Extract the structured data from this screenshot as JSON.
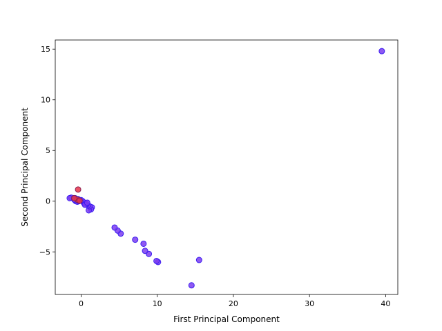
{
  "chart_data": {
    "type": "scatter",
    "title": "",
    "xlabel": "First Principal Component",
    "ylabel": "Second Principal Component",
    "xlim": [
      -3.4,
      41.6
    ],
    "ylim": [
      -9.2,
      15.9
    ],
    "xticks": [
      0,
      10,
      20,
      30,
      40
    ],
    "yticks": [
      -5,
      0,
      5,
      10,
      15
    ],
    "xtick_labels": [
      "0",
      "10",
      "20",
      "30",
      "40"
    ],
    "ytick_labels": [
      "−5",
      "0",
      "5",
      "10",
      "15"
    ],
    "grid": false,
    "legend": "none",
    "series": [
      {
        "color": "#7b3cf0",
        "edge_color": "#3a1cf0",
        "points": [
          [
            39.5,
            14.8
          ],
          [
            15.5,
            -5.8
          ],
          [
            14.5,
            -8.3
          ],
          [
            10.1,
            -6.0
          ],
          [
            9.9,
            -5.9
          ],
          [
            8.9,
            -5.2
          ],
          [
            8.4,
            -4.9
          ],
          [
            8.2,
            -4.2
          ],
          [
            7.1,
            -3.8
          ],
          [
            5.2,
            -3.2
          ],
          [
            4.8,
            -2.9
          ],
          [
            4.4,
            -2.6
          ],
          [
            1.4,
            -0.6
          ],
          [
            1.3,
            -0.8
          ],
          [
            1.0,
            -0.9
          ],
          [
            1.1,
            -0.5
          ],
          [
            0.9,
            -0.4
          ],
          [
            0.7,
            -0.3
          ],
          [
            0.6,
            -0.2
          ],
          [
            0.4,
            -0.2
          ],
          [
            0.3,
            -0.1
          ],
          [
            0.2,
            0.0
          ],
          [
            0.0,
            0.1
          ],
          [
            -0.2,
            0.1
          ],
          [
            -0.4,
            0.2
          ],
          [
            -0.6,
            0.2
          ],
          [
            -0.8,
            0.3
          ],
          [
            -1.0,
            0.3
          ],
          [
            -1.3,
            0.35
          ],
          [
            -1.5,
            0.3
          ],
          [
            -0.7,
            0.0
          ],
          [
            -0.5,
            -0.05
          ],
          [
            -0.9,
            0.15
          ],
          [
            -0.3,
            0.0
          ],
          [
            0.5,
            -0.35
          ],
          [
            0.8,
            -0.15
          ]
        ]
      },
      {
        "color": "#e8344a",
        "edge_color": "#8a2050",
        "points": [
          [
            -0.4,
            1.15
          ],
          [
            -0.5,
            0.15
          ],
          [
            -0.9,
            0.3
          ],
          [
            -0.2,
            0.05
          ]
        ]
      }
    ]
  }
}
